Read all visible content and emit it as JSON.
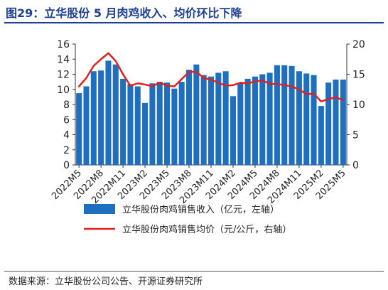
{
  "title": "图29：立华股份 5 月肉鸡收入、均价环比下降",
  "source": "数据来源：立华股份公司公告、开源证券研究所",
  "chart_data": {
    "type": "bar+line",
    "x": [
      "2022M5",
      "2022M6",
      "2022M7",
      "2022M8",
      "2022M9",
      "2022M10",
      "2022M11",
      "2022M12",
      "2023M1",
      "2023M2",
      "2023M3",
      "2023M4",
      "2023M5",
      "2023M6",
      "2023M7",
      "2023M8",
      "2023M9",
      "2023M10",
      "2023M11",
      "2023M12",
      "2024M1",
      "2024M2",
      "2024M3",
      "2024M4",
      "2024M5",
      "2024M6",
      "2024M7",
      "2024M8",
      "2024M9",
      "2024M10",
      "2024M11",
      "2024M12",
      "2025M1",
      "2025M2",
      "2025M3",
      "2025M4",
      "2025M5"
    ],
    "x_tick_labels": [
      "2022M5",
      "2022M8",
      "2022M11",
      "2023M2",
      "2023M5",
      "2023M8",
      "2023M11",
      "2024M2",
      "2024M5",
      "2024M8",
      "2024M11",
      "2025M2",
      "2025M5"
    ],
    "colors": {
      "bar": "#1f6fbf",
      "line": "#e02020"
    },
    "y_left": {
      "range": [
        0,
        16
      ],
      "ticks": [
        "0",
        "2",
        "4",
        "6",
        "8",
        "10",
        "12",
        "14",
        "16"
      ]
    },
    "y_right": {
      "range": [
        0,
        20
      ],
      "ticks": [
        "0",
        "5",
        "10",
        "15",
        "20"
      ]
    },
    "series": [
      {
        "name": "立华股份肉鸡销售收入（亿元，左轴）",
        "type": "bar",
        "axis": "left",
        "values": [
          9.5,
          10.4,
          12.4,
          12.5,
          13.8,
          13.3,
          11.4,
          10.7,
          10.4,
          8.2,
          10.8,
          11.0,
          10.9,
          10.1,
          11.0,
          12.6,
          13.3,
          11.9,
          11.7,
          12.2,
          12.4,
          9.1,
          10.8,
          11.4,
          11.7,
          12.0,
          12.2,
          13.2,
          13.2,
          13.1,
          12.4,
          12.1,
          11.9,
          7.8,
          10.9,
          11.3,
          11.3
        ]
      },
      {
        "name": "立华股份肉鸡销售均价（元/公斤，右轴）",
        "type": "line",
        "axis": "right",
        "values": [
          13.0,
          14.4,
          16.4,
          17.5,
          18.5,
          17.2,
          15.0,
          13.1,
          13.5,
          13.3,
          13.0,
          13.6,
          13.1,
          13.0,
          14.2,
          15.4,
          15.4,
          14.4,
          14.1,
          13.6,
          13.1,
          13.2,
          13.6,
          13.5,
          13.8,
          14.0,
          13.4,
          13.4,
          13.2,
          13.0,
          12.5,
          11.7,
          11.8,
          10.5,
          10.9,
          11.2,
          10.7
        ]
      }
    ]
  }
}
